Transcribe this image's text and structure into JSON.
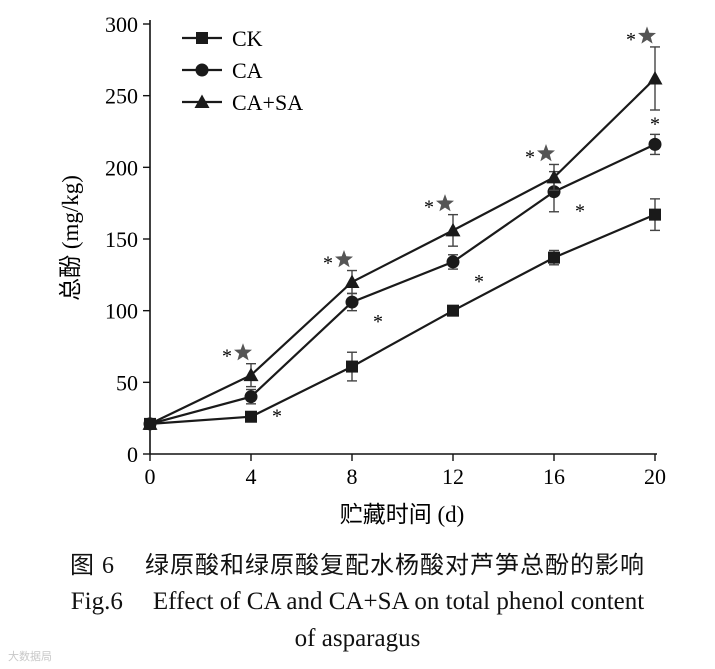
{
  "chart_data": {
    "type": "line",
    "x": [
      0,
      4,
      8,
      12,
      16,
      20
    ],
    "xticks": [
      "0",
      "4",
      "8",
      "12",
      "16",
      "20"
    ],
    "yticks": [
      "0",
      "50",
      "100",
      "150",
      "200",
      "250",
      "300"
    ],
    "xlim": [
      0,
      20
    ],
    "ylim": [
      0,
      300
    ],
    "xlabel": "贮藏时间 (d)",
    "ylabel": "总酚 (mg/kg)",
    "legend_position": "top-left",
    "series": [
      {
        "name": "CK",
        "marker": "square",
        "values": [
          21,
          26,
          61,
          100,
          137,
          167
        ],
        "errors": [
          0,
          0,
          10,
          0,
          5,
          11
        ],
        "stars": [
          null,
          null,
          null,
          null,
          null,
          null
        ],
        "asterisks": [
          null,
          null,
          null,
          null,
          null,
          null
        ]
      },
      {
        "name": "CA",
        "marker": "circle",
        "values": [
          21,
          40,
          106,
          134,
          183,
          216
        ],
        "errors": [
          0,
          5,
          6,
          5,
          14,
          7
        ],
        "stars": [
          null,
          null,
          null,
          null,
          null,
          null
        ],
        "asterisks": [
          null,
          "*",
          "*",
          "*",
          "*",
          "*"
        ]
      },
      {
        "name": "CA+SA",
        "marker": "triangle",
        "values": [
          21,
          55,
          120,
          156,
          193,
          262
        ],
        "errors": [
          0,
          8,
          8,
          11,
          9,
          22
        ],
        "stars": [
          null,
          "*",
          "*",
          "*",
          "*",
          "*"
        ],
        "asterisks": [
          null,
          null,
          null,
          null,
          null,
          null
        ]
      }
    ]
  },
  "caption": {
    "cn_label": "图 6",
    "cn_text": "绿原酸和绿原酸复配水杨酸对芦笋总酚的影响",
    "en_label": "Fig.6",
    "en_text_line1": "Effect of CA and CA+SA on total phenol content",
    "en_text_line2": "of asparagus"
  },
  "watermark": "大数据局"
}
